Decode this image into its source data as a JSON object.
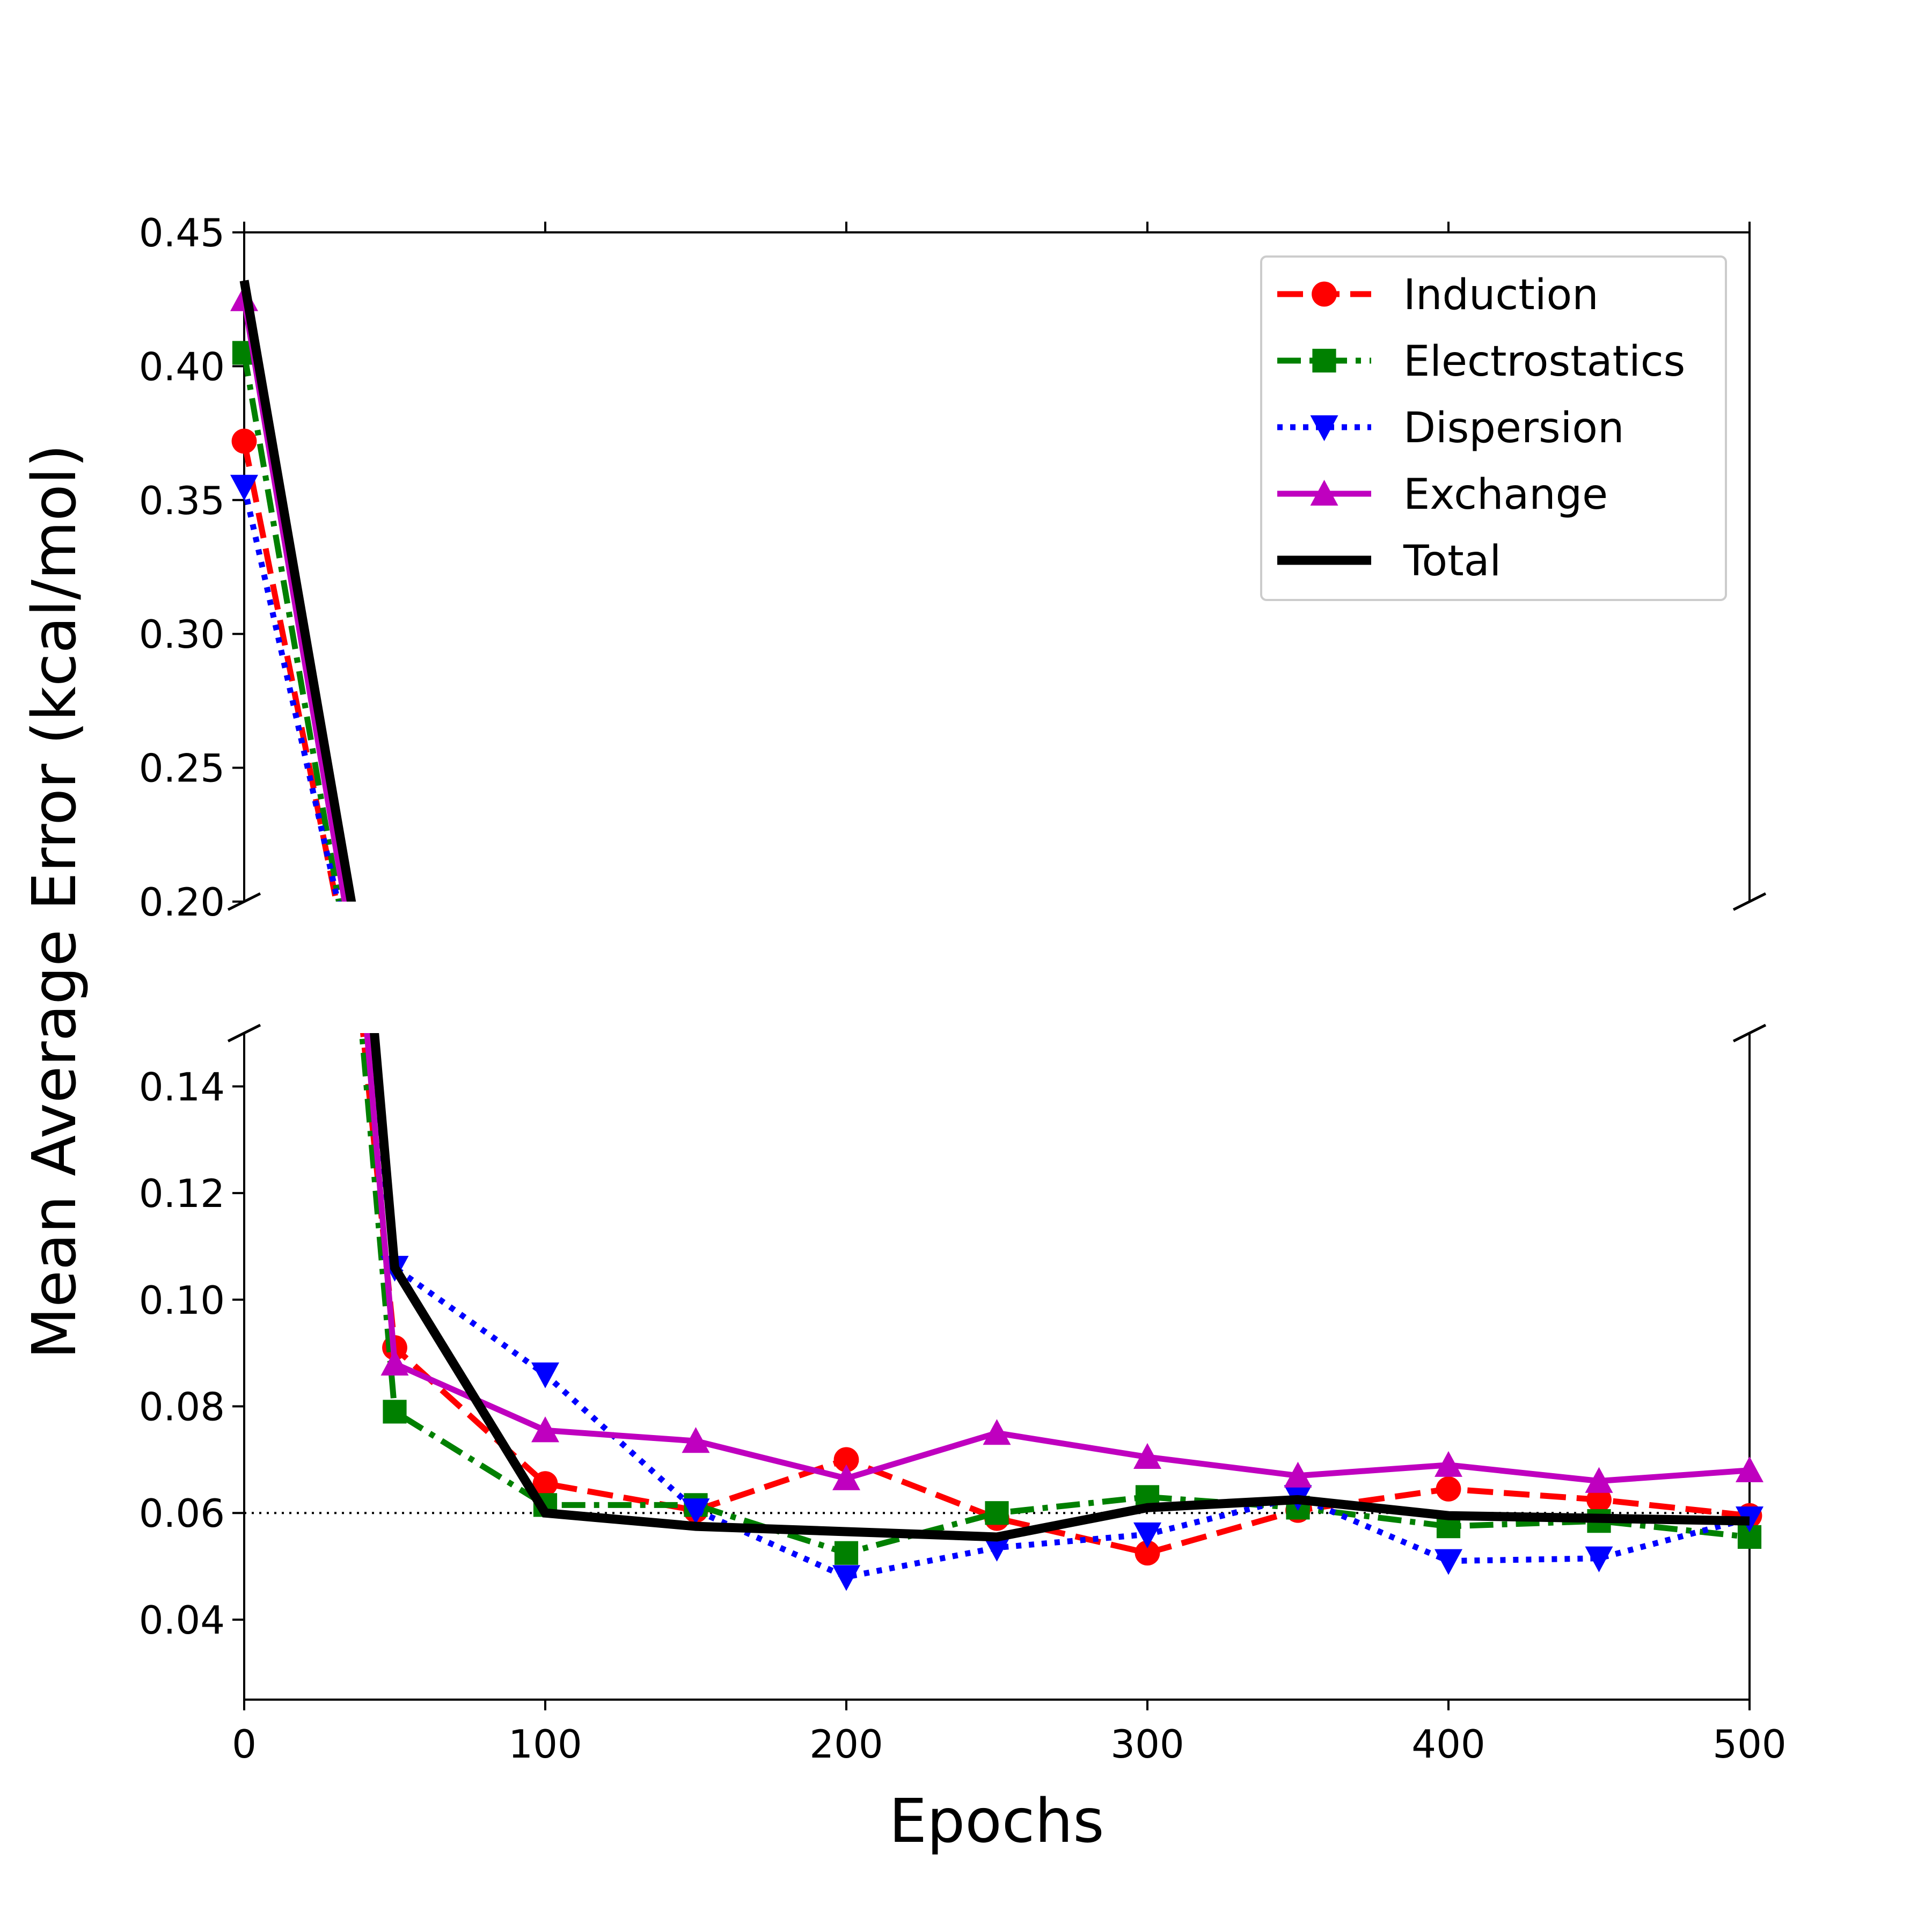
{
  "chart_data": {
    "type": "line",
    "xlabel": "Epochs",
    "ylabel": "Mean Average Error (kcal/mol)",
    "xlim": [
      0,
      500
    ],
    "x_ticks": [
      "0",
      "100",
      "200",
      "300",
      "400",
      "500"
    ],
    "broken_y_axis": true,
    "upper_panel": {
      "ylim": [
        0.2,
        0.45
      ],
      "y_ticks": [
        "0.20",
        "0.25",
        "0.30",
        "0.35",
        "0.40",
        "0.45"
      ]
    },
    "lower_panel": {
      "ylim": [
        0.025,
        0.15
      ],
      "y_ticks": [
        "0.04",
        "0.06",
        "0.08",
        "0.10",
        "0.12",
        "0.14"
      ]
    },
    "reference_line": {
      "y": 0.06,
      "style": "dotted",
      "color": "#000000"
    },
    "legend_position": "top-right",
    "x": [
      0,
      50,
      100,
      150,
      200,
      250,
      300,
      350,
      400,
      450,
      500
    ],
    "series": [
      {
        "name": "Induction",
        "color": "#ff0000",
        "marker": "circle",
        "dash": "dashed",
        "values": [
          0.372,
          0.091,
          0.0655,
          0.0605,
          0.07,
          0.059,
          0.0525,
          0.0605,
          0.0645,
          0.0625,
          0.0595
        ]
      },
      {
        "name": "Electrostatics",
        "color": "#008000",
        "marker": "square",
        "dash": "dashdot",
        "values": [
          0.405,
          0.079,
          0.0615,
          0.0615,
          0.0525,
          0.06,
          0.063,
          0.061,
          0.0575,
          0.0585,
          0.0555
        ]
      },
      {
        "name": "Dispersion",
        "color": "#0000ff",
        "marker": "triangle-down",
        "dash": "dotted",
        "values": [
          0.355,
          0.106,
          0.086,
          0.0605,
          0.048,
          0.0535,
          0.056,
          0.063,
          0.051,
          0.0515,
          0.059
        ]
      },
      {
        "name": "Exchange",
        "color": "#bf00bf",
        "marker": "triangle-up",
        "dash": "solid",
        "values": [
          0.425,
          0.088,
          0.0755,
          0.0735,
          0.0665,
          0.075,
          0.0705,
          0.067,
          0.069,
          0.066,
          0.068
        ]
      },
      {
        "name": "Total",
        "color": "#000000",
        "marker": "none",
        "dash": "solid-thick",
        "values": [
          0.432,
          0.106,
          0.06,
          0.0575,
          0.0565,
          0.0555,
          0.061,
          0.0625,
          0.0595,
          0.059,
          0.0585
        ]
      }
    ]
  }
}
